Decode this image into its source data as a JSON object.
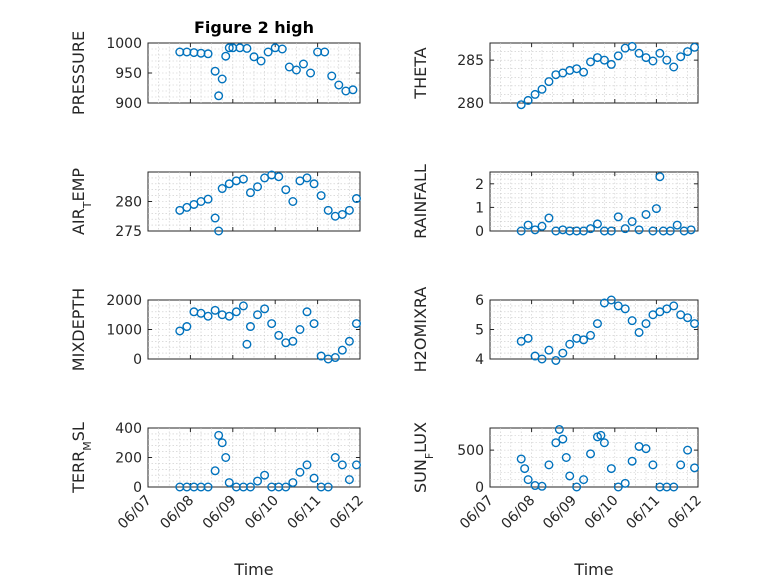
{
  "figure": {
    "title": "Figure 2 high",
    "marker_color": "#0072BD",
    "x_ticks": [
      "06/07",
      "06/08",
      "06/09",
      "06/10",
      "06/11",
      "06/12"
    ]
  },
  "chart_data": [
    {
      "type": "scatter",
      "title": "Figure 2 high",
      "ylabel": "PRESSURE",
      "xlabel": "",
      "ylim": [
        900,
        1000
      ],
      "yticks": [
        900,
        950,
        1000
      ],
      "x": [
        "2021-06-07T18:00",
        "2021-06-07T22:00",
        "2021-06-08T02:00",
        "2021-06-08T06:00",
        "2021-06-08T10:00",
        "2021-06-08T14:00",
        "2021-06-08T16:00",
        "2021-06-08T18:00",
        "2021-06-08T20:00",
        "2021-06-08T22:00",
        "2021-06-09T00:00",
        "2021-06-09T04:00",
        "2021-06-09T08:00",
        "2021-06-09T12:00",
        "2021-06-09T16:00",
        "2021-06-09T20:00",
        "2021-06-10T00:00",
        "2021-06-10T04:00",
        "2021-06-10T08:00",
        "2021-06-10T12:00",
        "2021-06-10T16:00",
        "2021-06-10T20:00",
        "2021-06-11T00:00",
        "2021-06-11T04:00",
        "2021-06-11T08:00",
        "2021-06-11T12:00",
        "2021-06-11T16:00",
        "2021-06-11T20:00"
      ],
      "y": [
        985,
        985,
        984,
        983,
        982,
        953,
        912,
        940,
        978,
        992,
        992,
        992,
        991,
        977,
        970,
        985,
        992,
        990,
        960,
        955,
        965,
        950,
        985,
        985,
        945,
        930,
        920,
        922
      ]
    },
    {
      "type": "scatter",
      "ylabel": "THETA",
      "xlabel": "",
      "ylim": [
        280,
        287
      ],
      "yticks": [
        280,
        285
      ],
      "x": [
        "2021-06-07T18:00",
        "2021-06-07T22:00",
        "2021-06-08T02:00",
        "2021-06-08T06:00",
        "2021-06-08T10:00",
        "2021-06-08T14:00",
        "2021-06-08T18:00",
        "2021-06-08T22:00",
        "2021-06-09T02:00",
        "2021-06-09T06:00",
        "2021-06-09T10:00",
        "2021-06-09T14:00",
        "2021-06-09T18:00",
        "2021-06-09T22:00",
        "2021-06-10T02:00",
        "2021-06-10T06:00",
        "2021-06-10T10:00",
        "2021-06-10T14:00",
        "2021-06-10T18:00",
        "2021-06-10T22:00",
        "2021-06-11T02:00",
        "2021-06-11T06:00",
        "2021-06-11T10:00",
        "2021-06-11T14:00",
        "2021-06-11T18:00",
        "2021-06-11T22:00"
      ],
      "y": [
        279.8,
        280.3,
        281.0,
        281.6,
        282.5,
        283.3,
        283.5,
        283.8,
        284.0,
        283.6,
        284.8,
        285.3,
        285.0,
        284.5,
        285.5,
        286.4,
        286.6,
        285.8,
        285.3,
        284.9,
        285.8,
        285.0,
        284.2,
        285.4,
        286.0,
        286.5
      ]
    },
    {
      "type": "scatter",
      "ylabel": "AIR_TEMP",
      "xlabel": "",
      "ylim": [
        275,
        285
      ],
      "yticks": [
        275,
        280
      ],
      "x": [
        "2021-06-07T18:00",
        "2021-06-07T22:00",
        "2021-06-08T02:00",
        "2021-06-08T06:00",
        "2021-06-08T10:00",
        "2021-06-08T14:00",
        "2021-06-08T16:00",
        "2021-06-08T18:00",
        "2021-06-08T22:00",
        "2021-06-09T02:00",
        "2021-06-09T06:00",
        "2021-06-09T10:00",
        "2021-06-09T14:00",
        "2021-06-09T18:00",
        "2021-06-09T22:00",
        "2021-06-10T02:00",
        "2021-06-10T06:00",
        "2021-06-10T10:00",
        "2021-06-10T14:00",
        "2021-06-10T18:00",
        "2021-06-10T22:00",
        "2021-06-11T02:00",
        "2021-06-11T06:00",
        "2021-06-11T10:00",
        "2021-06-11T14:00",
        "2021-06-11T18:00",
        "2021-06-11T22:00"
      ],
      "y": [
        278.5,
        279.0,
        279.5,
        280.0,
        280.4,
        277.2,
        275.0,
        282.2,
        283.0,
        283.5,
        283.8,
        281.5,
        282.5,
        284.0,
        284.5,
        284.2,
        282.0,
        280.0,
        283.5,
        284.0,
        283.0,
        281.0,
        278.5,
        277.5,
        277.8,
        278.5,
        280.5
      ]
    },
    {
      "type": "scatter",
      "ylabel": "RAINFALL",
      "xlabel": "",
      "ylim": [
        0,
        2.5
      ],
      "yticks": [
        0,
        1,
        2
      ],
      "x": [
        "2021-06-07T18:00",
        "2021-06-07T22:00",
        "2021-06-08T02:00",
        "2021-06-08T06:00",
        "2021-06-08T10:00",
        "2021-06-08T14:00",
        "2021-06-08T18:00",
        "2021-06-08T22:00",
        "2021-06-09T02:00",
        "2021-06-09T06:00",
        "2021-06-09T10:00",
        "2021-06-09T14:00",
        "2021-06-09T18:00",
        "2021-06-09T22:00",
        "2021-06-10T02:00",
        "2021-06-10T06:00",
        "2021-06-10T10:00",
        "2021-06-10T14:00",
        "2021-06-10T18:00",
        "2021-06-10T22:00",
        "2021-06-11T00:00",
        "2021-06-11T02:00",
        "2021-06-11T04:00",
        "2021-06-11T08:00",
        "2021-06-11T12:00",
        "2021-06-11T16:00",
        "2021-06-11T20:00"
      ],
      "y": [
        0,
        0.25,
        0.05,
        0.2,
        0.55,
        0,
        0.05,
        0,
        0,
        0,
        0.1,
        0.3,
        0,
        0,
        0.6,
        0.1,
        0.4,
        0.05,
        0.7,
        0,
        0.95,
        2.3,
        0,
        0,
        0.25,
        0,
        0.05
      ]
    },
    {
      "type": "scatter",
      "ylabel": "MIXDEPTH",
      "xlabel": "",
      "ylim": [
        0,
        2000
      ],
      "yticks": [
        0,
        1000,
        2000
      ],
      "x": [
        "2021-06-07T18:00",
        "2021-06-07T22:00",
        "2021-06-08T02:00",
        "2021-06-08T06:00",
        "2021-06-08T10:00",
        "2021-06-08T14:00",
        "2021-06-08T18:00",
        "2021-06-08T22:00",
        "2021-06-09T02:00",
        "2021-06-09T06:00",
        "2021-06-09T08:00",
        "2021-06-09T10:00",
        "2021-06-09T14:00",
        "2021-06-09T18:00",
        "2021-06-09T22:00",
        "2021-06-10T02:00",
        "2021-06-10T06:00",
        "2021-06-10T10:00",
        "2021-06-10T14:00",
        "2021-06-10T18:00",
        "2021-06-10T22:00",
        "2021-06-11T02:00",
        "2021-06-11T06:00",
        "2021-06-11T10:00",
        "2021-06-11T14:00",
        "2021-06-11T18:00",
        "2021-06-11T22:00"
      ],
      "y": [
        950,
        1100,
        1600,
        1550,
        1450,
        1650,
        1500,
        1450,
        1600,
        1800,
        500,
        1100,
        1500,
        1700,
        1200,
        800,
        550,
        600,
        1000,
        1600,
        1200,
        100,
        0,
        50,
        300,
        600,
        1200
      ]
    },
    {
      "type": "scatter",
      "ylabel": "H2OMIXRA",
      "xlabel": "",
      "ylim": [
        4,
        6
      ],
      "yticks": [
        4,
        5,
        6
      ],
      "x": [
        "2021-06-07T18:00",
        "2021-06-07T22:00",
        "2021-06-08T02:00",
        "2021-06-08T06:00",
        "2021-06-08T10:00",
        "2021-06-08T14:00",
        "2021-06-08T18:00",
        "2021-06-08T22:00",
        "2021-06-09T02:00",
        "2021-06-09T06:00",
        "2021-06-09T10:00",
        "2021-06-09T14:00",
        "2021-06-09T18:00",
        "2021-06-09T22:00",
        "2021-06-10T02:00",
        "2021-06-10T06:00",
        "2021-06-10T10:00",
        "2021-06-10T14:00",
        "2021-06-10T18:00",
        "2021-06-10T22:00",
        "2021-06-11T02:00",
        "2021-06-11T06:00",
        "2021-06-11T10:00",
        "2021-06-11T14:00",
        "2021-06-11T18:00",
        "2021-06-11T22:00"
      ],
      "y": [
        4.6,
        4.7,
        4.1,
        4.0,
        4.3,
        3.95,
        4.2,
        4.5,
        4.7,
        4.65,
        4.8,
        5.2,
        5.9,
        6.0,
        5.8,
        5.7,
        5.3,
        4.9,
        5.2,
        5.5,
        5.6,
        5.7,
        5.8,
        5.5,
        5.4,
        5.2
      ]
    },
    {
      "type": "scatter",
      "ylabel": "TERR_MSL",
      "xlabel": "Time",
      "ylim": [
        0,
        400
      ],
      "yticks": [
        0,
        200,
        400
      ],
      "x": [
        "2021-06-07T18:00",
        "2021-06-07T22:00",
        "2021-06-08T02:00",
        "2021-06-08T06:00",
        "2021-06-08T10:00",
        "2021-06-08T14:00",
        "2021-06-08T16:00",
        "2021-06-08T18:00",
        "2021-06-08T20:00",
        "2021-06-08T22:00",
        "2021-06-09T02:00",
        "2021-06-09T06:00",
        "2021-06-09T10:00",
        "2021-06-09T14:00",
        "2021-06-09T18:00",
        "2021-06-09T22:00",
        "2021-06-10T02:00",
        "2021-06-10T06:00",
        "2021-06-10T10:00",
        "2021-06-10T14:00",
        "2021-06-10T18:00",
        "2021-06-10T22:00",
        "2021-06-11T02:00",
        "2021-06-11T06:00",
        "2021-06-11T10:00",
        "2021-06-11T14:00",
        "2021-06-11T18:00",
        "2021-06-11T22:00"
      ],
      "y": [
        0,
        0,
        0,
        0,
        0,
        110,
        350,
        300,
        200,
        30,
        0,
        0,
        0,
        40,
        80,
        0,
        0,
        0,
        30,
        100,
        150,
        60,
        0,
        0,
        200,
        150,
        50,
        150
      ]
    },
    {
      "type": "scatter",
      "ylabel": "SUN_FLUX",
      "xlabel": "Time",
      "ylim": [
        0,
        800
      ],
      "yticks": [
        0,
        500
      ],
      "x": [
        "2021-06-07T18:00",
        "2021-06-07T20:00",
        "2021-06-07T22:00",
        "2021-06-08T02:00",
        "2021-06-08T06:00",
        "2021-06-08T10:00",
        "2021-06-08T14:00",
        "2021-06-08T16:00",
        "2021-06-08T18:00",
        "2021-06-08T20:00",
        "2021-06-08T22:00",
        "2021-06-09T02:00",
        "2021-06-09T06:00",
        "2021-06-09T10:00",
        "2021-06-09T14:00",
        "2021-06-09T16:00",
        "2021-06-09T18:00",
        "2021-06-09T22:00",
        "2021-06-10T02:00",
        "2021-06-10T06:00",
        "2021-06-10T10:00",
        "2021-06-10T14:00",
        "2021-06-10T18:00",
        "2021-06-10T22:00",
        "2021-06-11T02:00",
        "2021-06-11T06:00",
        "2021-06-11T10:00",
        "2021-06-11T14:00",
        "2021-06-11T18:00",
        "2021-06-11T22:00"
      ],
      "y": [
        380,
        250,
        100,
        20,
        10,
        300,
        600,
        780,
        650,
        400,
        150,
        0,
        100,
        450,
        680,
        700,
        600,
        250,
        0,
        50,
        350,
        550,
        520,
        300,
        0,
        0,
        0,
        300,
        500,
        260
      ]
    }
  ]
}
